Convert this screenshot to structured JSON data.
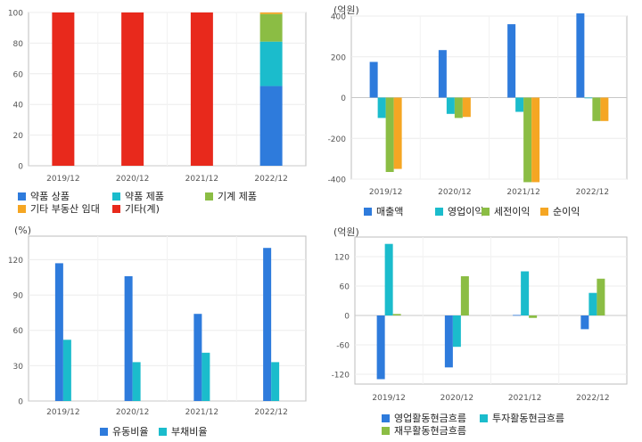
{
  "charts": [
    {
      "id": "product-mix",
      "unit": "",
      "chart_data": {
        "type": "bar",
        "stacked": true,
        "categories": [
          "2019/12",
          "2020/12",
          "2021/12",
          "2022/12"
        ],
        "ylim": [
          0,
          100
        ],
        "yticks": [
          0,
          20,
          40,
          60,
          80,
          100
        ],
        "series": [
          {
            "name": "약품 상품",
            "color": "#2e7bdc",
            "values": [
              0,
              0,
              0,
              52
            ]
          },
          {
            "name": "약품 제품",
            "color": "#1bbccc",
            "values": [
              0,
              0,
              0,
              29
            ]
          },
          {
            "name": "기계 제품",
            "color": "#8bbd44",
            "values": [
              0,
              0,
              0,
              18
            ]
          },
          {
            "name": "기타 부동산 임대",
            "color": "#f5a623",
            "values": [
              0,
              0,
              0,
              1
            ]
          },
          {
            "name": "기타(계)",
            "color": "#e8291c",
            "values": [
              100,
              100,
              100,
              0
            ]
          }
        ]
      }
    },
    {
      "id": "income",
      "unit": "(억원)",
      "chart_data": {
        "type": "bar",
        "categories": [
          "2019/12",
          "2020/12",
          "2021/12",
          "2022/12"
        ],
        "ylim": [
          -400,
          400
        ],
        "yticks": [
          -400,
          -200,
          0,
          200,
          400
        ],
        "series": [
          {
            "name": "매출액",
            "color": "#2e7bdc",
            "values": [
              175,
              233,
              360,
              413
            ]
          },
          {
            "name": "영업이익",
            "color": "#1bbccc",
            "values": [
              -100,
              -80,
              -70,
              -3
            ]
          },
          {
            "name": "세전이익",
            "color": "#8bbd44",
            "values": [
              -365,
              -100,
              -415,
              -115
            ]
          },
          {
            "name": "순이익",
            "color": "#f5a623",
            "values": [
              -350,
              -95,
              -415,
              -115
            ]
          }
        ]
      }
    },
    {
      "id": "ratios",
      "unit": "(%)",
      "chart_data": {
        "type": "bar",
        "categories": [
          "2019/12",
          "2020/12",
          "2021/12",
          "2022/12"
        ],
        "ylim": [
          0,
          140
        ],
        "yticks": [
          0,
          30,
          60,
          90,
          120
        ],
        "series": [
          {
            "name": "유동비율",
            "color": "#2e7bdc",
            "values": [
              117,
              106,
              74,
              130
            ]
          },
          {
            "name": "부채비율",
            "color": "#1bbccc",
            "values": [
              52,
              33,
              41,
              33
            ]
          }
        ]
      }
    },
    {
      "id": "cashflow",
      "unit": "(억원)",
      "chart_data": {
        "type": "bar",
        "categories": [
          "2019/12",
          "2020/12",
          "2021/12",
          "2022/12"
        ],
        "ylim": [
          -140,
          160
        ],
        "yticks": [
          -120,
          -60,
          0,
          60,
          120
        ],
        "series": [
          {
            "name": "영업활동현금흐름",
            "color": "#2e7bdc",
            "values": [
              -130,
              -106,
              1,
              -28
            ]
          },
          {
            "name": "투자활동현금흐름",
            "color": "#1bbccc",
            "values": [
              146,
              -64,
              90,
              46
            ]
          },
          {
            "name": "재무활동현금흐름",
            "color": "#8bbd44",
            "values": [
              3,
              80,
              -5,
              75
            ]
          }
        ]
      }
    }
  ]
}
